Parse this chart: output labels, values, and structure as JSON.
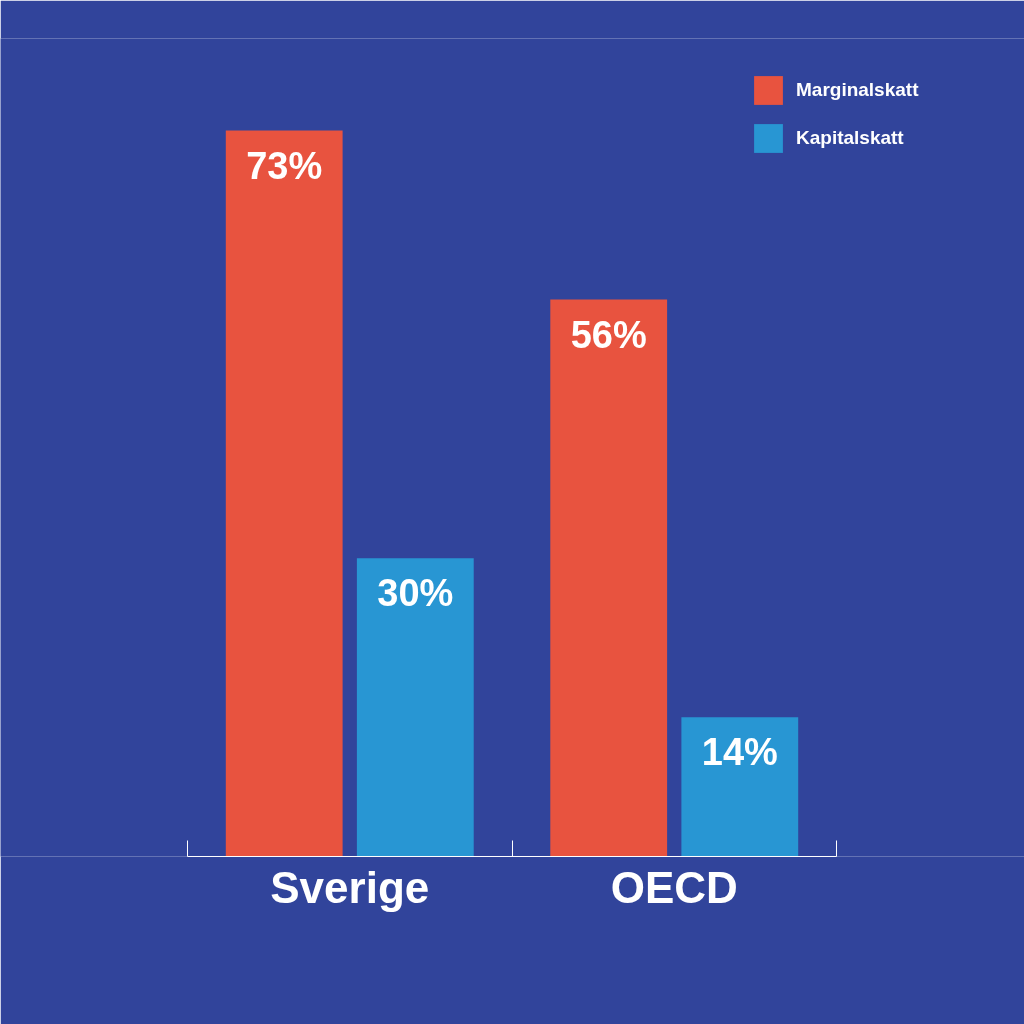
{
  "chart_data": {
    "type": "bar",
    "categories": [
      "Sverige",
      "OECD"
    ],
    "series": [
      {
        "name": "Marginalskatt",
        "color": "#e8533f",
        "values": [
          73,
          56
        ],
        "value_labels": [
          "73%",
          "56%"
        ]
      },
      {
        "name": "Kapitalskatt",
        "color": "#2896d3",
        "values": [
          30,
          14
        ],
        "value_labels": [
          "30%",
          "14%"
        ]
      }
    ],
    "legend": "top right",
    "grid": false
  }
}
